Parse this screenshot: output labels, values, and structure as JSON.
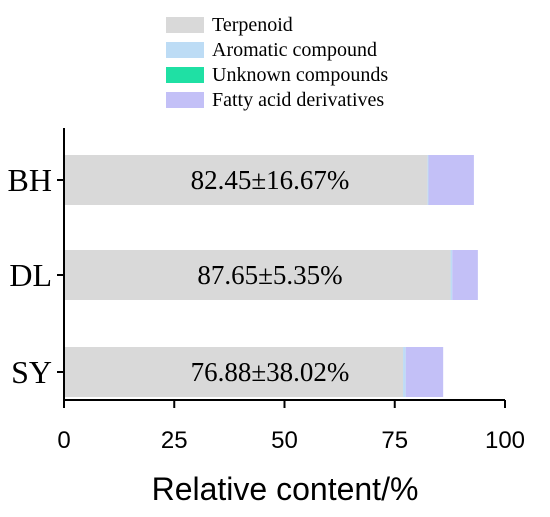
{
  "chart_data": {
    "type": "bar",
    "orientation": "horizontal",
    "stacked": true,
    "categories": [
      "BH",
      "DL",
      "SY"
    ],
    "series": [
      {
        "name": "Terpenoid",
        "color": "#d9d9d9",
        "values": [
          82.45,
          87.65,
          76.88
        ]
      },
      {
        "name": "Aromatic compound",
        "color": "#bddcf5",
        "values": [
          0.2,
          0.4,
          0.6
        ]
      },
      {
        "name": "Unknown compounds",
        "color": "#1fe0a4",
        "values": [
          0.0,
          0.0,
          0.0
        ]
      },
      {
        "name": "Fatty acid derivatives",
        "color": "#c3c0f7",
        "values": [
          10.3,
          5.8,
          8.5
        ]
      }
    ],
    "bar_labels": [
      "82.45±16.67%",
      "87.65±5.35%",
      "76.88±38.02%"
    ],
    "xlabel": "Relative content/%",
    "ylabel": "",
    "xlim": [
      0,
      100
    ],
    "xticks": [
      "0",
      "25",
      "50",
      "75",
      "100"
    ],
    "grid": false,
    "legend_position": "top"
  }
}
